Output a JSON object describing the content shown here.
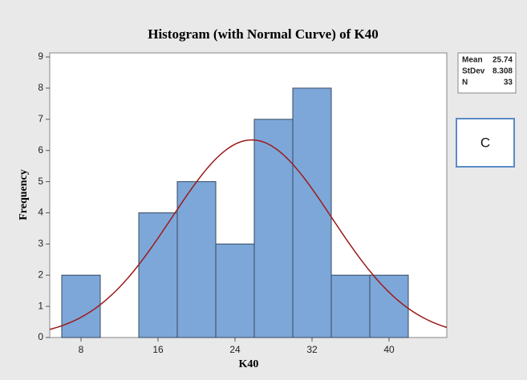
{
  "chart_data": {
    "type": "histogram",
    "title": "Histogram (with Normal Curve) of K40",
    "x_label": "K40",
    "y_label": "Frequency",
    "bins": [
      6,
      10,
      14,
      18,
      22,
      26,
      30,
      34,
      38,
      42
    ],
    "values": [
      2,
      0,
      4,
      5,
      3,
      7,
      8,
      2,
      2
    ],
    "color": "#7da7d9",
    "curve_color": "#9b1b1b",
    "xlim": [
      4.75,
      46
    ],
    "xticks": [
      8,
      16,
      24,
      32,
      40
    ],
    "ylim": [
      0,
      9.13
    ],
    "yticks": [
      0,
      1,
      2,
      3,
      4,
      5,
      6,
      7,
      8,
      9
    ],
    "stats": [
      {
        "label": "Mean",
        "value": 25.74
      },
      {
        "label": "StDev",
        "value": 8.308
      },
      {
        "label": "N",
        "value": 33
      }
    ],
    "annotation": "C"
  }
}
